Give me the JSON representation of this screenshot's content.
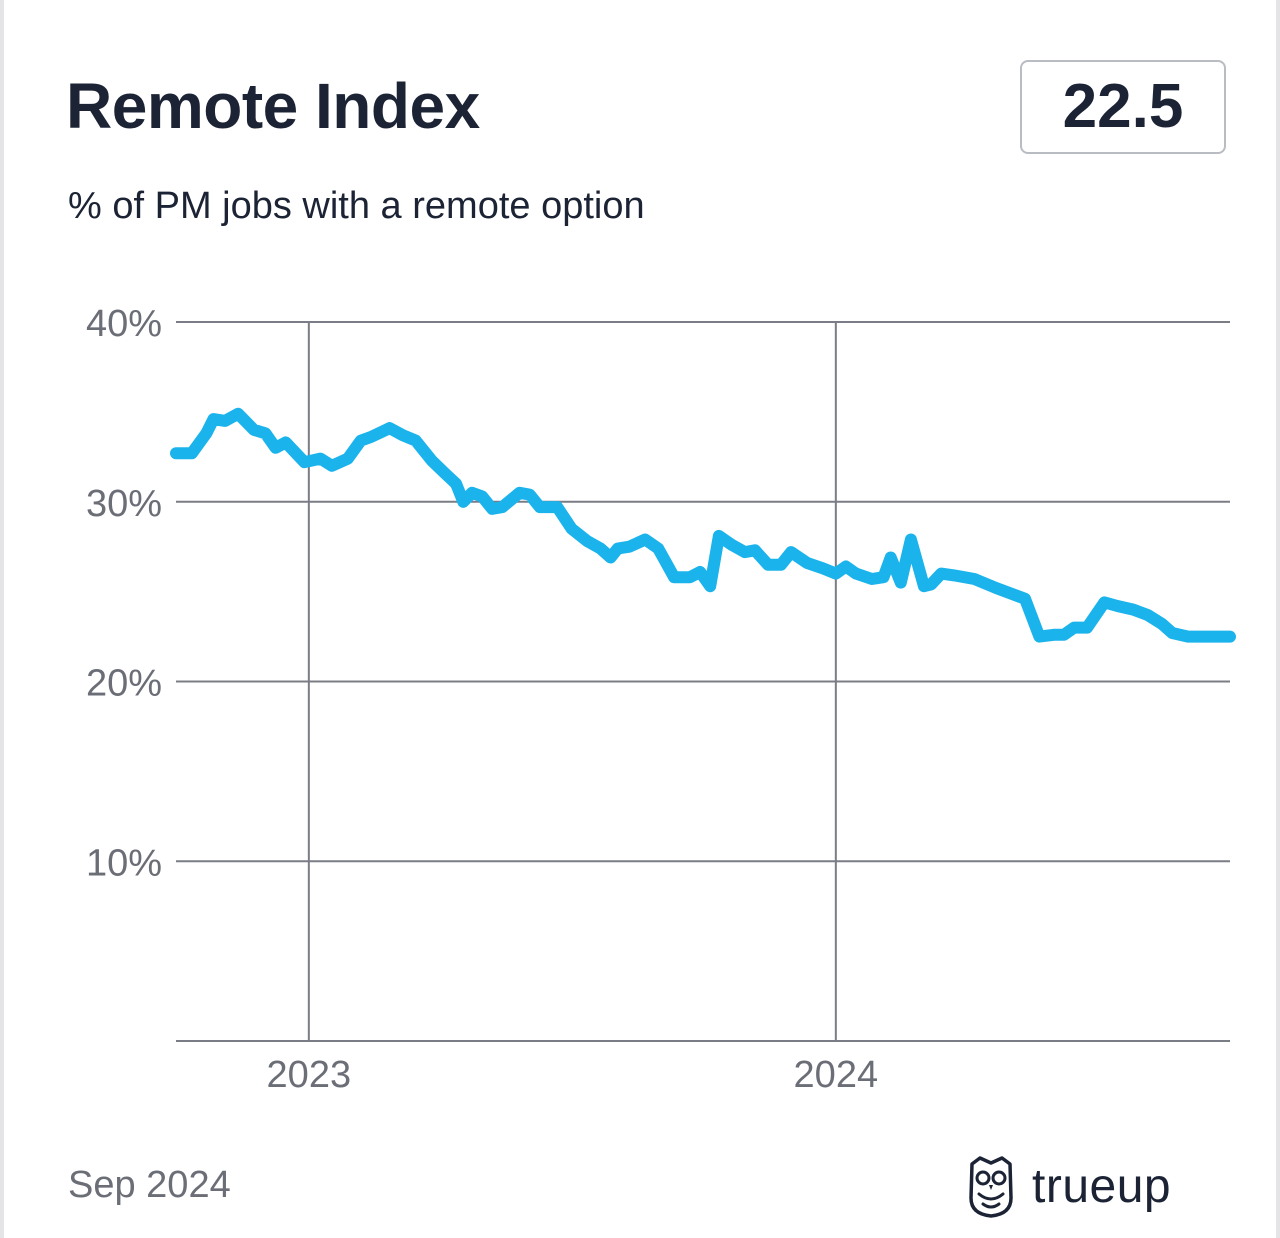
{
  "header": {
    "title": "Remote Index",
    "current_value": "22.5",
    "subtitle": "% of PM jobs with a remote option"
  },
  "footer": {
    "date": "Sep 2024",
    "brand": "trueup",
    "logo_icon": "owl-icon"
  },
  "colors": {
    "line": "#1bb3ec",
    "text": "#1b2335",
    "axis_text": "#6b6e76",
    "grid": "#7a7d85"
  },
  "chart_data": {
    "type": "line",
    "title": "Remote Index",
    "subtitle": "% of PM jobs with a remote option",
    "xlabel": "",
    "ylabel": "",
    "x_ticks": [
      {
        "date": "2023-01-01",
        "label": "2023"
      },
      {
        "date": "2024-01-01",
        "label": "2024"
      }
    ],
    "xlim": [
      "2022-10-01",
      "2024-09-30"
    ],
    "y_ticks": [
      {
        "value": 10,
        "label": "10%"
      },
      {
        "value": 20,
        "label": "20%"
      },
      {
        "value": 30,
        "label": "30%"
      },
      {
        "value": 40,
        "label": "40%"
      }
    ],
    "ylim": [
      0,
      40
    ],
    "grid": true,
    "series": [
      {
        "points": [
          [
            "2022-10-01",
            32.7
          ],
          [
            "2022-10-12",
            32.7
          ],
          [
            "2022-10-22",
            33.8
          ],
          [
            "2022-10-27",
            34.6
          ],
          [
            "2022-11-04",
            34.5
          ],
          [
            "2022-11-13",
            34.9
          ],
          [
            "2022-11-24",
            34.0
          ],
          [
            "2022-12-02",
            33.8
          ],
          [
            "2022-12-09",
            33.0
          ],
          [
            "2022-12-16",
            33.3
          ],
          [
            "2022-12-29",
            32.2
          ],
          [
            "2023-01-09",
            32.4
          ],
          [
            "2023-01-17",
            32.0
          ],
          [
            "2023-01-28",
            32.4
          ],
          [
            "2023-02-06",
            33.4
          ],
          [
            "2023-02-13",
            33.6
          ],
          [
            "2023-02-26",
            34.1
          ],
          [
            "2023-03-07",
            33.7
          ],
          [
            "2023-03-16",
            33.4
          ],
          [
            "2023-03-27",
            32.3
          ],
          [
            "2023-04-05",
            31.6
          ],
          [
            "2023-04-13",
            31.0
          ],
          [
            "2023-04-18",
            30.0
          ],
          [
            "2023-04-24",
            30.5
          ],
          [
            "2023-05-01",
            30.3
          ],
          [
            "2023-05-08",
            29.6
          ],
          [
            "2023-05-15",
            29.7
          ],
          [
            "2023-05-27",
            30.5
          ],
          [
            "2023-06-03",
            30.4
          ],
          [
            "2023-06-10",
            29.7
          ],
          [
            "2023-06-22",
            29.7
          ],
          [
            "2023-07-02",
            28.5
          ],
          [
            "2023-07-13",
            27.8
          ],
          [
            "2023-07-22",
            27.4
          ],
          [
            "2023-07-29",
            26.9
          ],
          [
            "2023-08-03",
            27.4
          ],
          [
            "2023-08-11",
            27.5
          ],
          [
            "2023-08-22",
            27.9
          ],
          [
            "2023-08-31",
            27.4
          ],
          [
            "2023-09-11",
            25.8
          ],
          [
            "2023-09-22",
            25.8
          ],
          [
            "2023-09-29",
            26.1
          ],
          [
            "2023-10-06",
            25.3
          ],
          [
            "2023-10-12",
            28.1
          ],
          [
            "2023-10-21",
            27.6
          ],
          [
            "2023-10-30",
            27.2
          ],
          [
            "2023-11-06",
            27.3
          ],
          [
            "2023-11-15",
            26.5
          ],
          [
            "2023-11-24",
            26.5
          ],
          [
            "2023-12-01",
            27.2
          ],
          [
            "2023-12-12",
            26.6
          ],
          [
            "2023-12-23",
            26.3
          ],
          [
            "2024-01-01",
            26.0
          ],
          [
            "2024-01-08",
            26.4
          ],
          [
            "2024-01-15",
            26.0
          ],
          [
            "2024-01-26",
            25.7
          ],
          [
            "2024-02-03",
            25.8
          ],
          [
            "2024-02-08",
            26.9
          ],
          [
            "2024-02-15",
            25.5
          ],
          [
            "2024-02-22",
            27.9
          ],
          [
            "2024-03-02",
            25.3
          ],
          [
            "2024-03-07",
            25.4
          ],
          [
            "2024-03-14",
            26.0
          ],
          [
            "2024-03-23",
            25.9
          ],
          [
            "2024-04-06",
            25.7
          ],
          [
            "2024-04-21",
            25.2
          ],
          [
            "2024-05-01",
            24.9
          ],
          [
            "2024-05-11",
            24.6
          ],
          [
            "2024-05-21",
            22.5
          ],
          [
            "2024-05-31",
            22.6
          ],
          [
            "2024-06-07",
            22.6
          ],
          [
            "2024-06-14",
            23.0
          ],
          [
            "2024-06-23",
            23.0
          ],
          [
            "2024-07-05",
            24.4
          ],
          [
            "2024-07-14",
            24.2
          ],
          [
            "2024-07-25",
            24.0
          ],
          [
            "2024-08-04",
            23.7
          ],
          [
            "2024-08-14",
            23.2
          ],
          [
            "2024-08-21",
            22.7
          ],
          [
            "2024-09-01",
            22.5
          ],
          [
            "2024-09-15",
            22.5
          ],
          [
            "2024-09-30",
            22.5
          ]
        ]
      }
    ]
  }
}
